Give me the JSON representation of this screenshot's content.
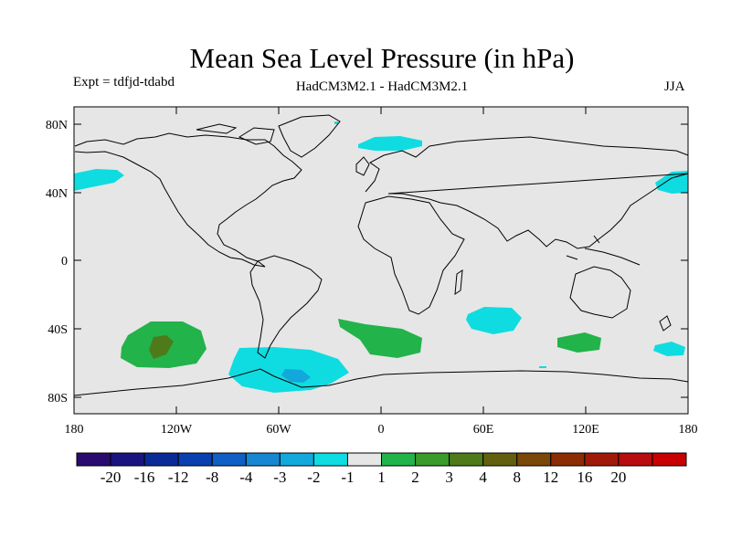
{
  "title": "Mean Sea Level Pressure (in hPa)",
  "experiment_label": "Expt = tdfjd-tdabd",
  "subtitle": "HadCM3M2.1 - HadCM3M2.1",
  "season": "JJA",
  "lat_ticks": [
    "80N",
    "40N",
    "0",
    "40S",
    "80S"
  ],
  "lon_ticks": [
    "180",
    "120W",
    "60W",
    "0",
    "60E",
    "120E",
    "180"
  ],
  "colorbar": {
    "colors": [
      "#2a0a6e",
      "#1a1480",
      "#0a2a98",
      "#0a3fb0",
      "#0f5fc4",
      "#1886d2",
      "#12a8dc",
      "#0fdce0",
      "#e6e6e6",
      "#22b34a",
      "#3a9a2a",
      "#4e7a1a",
      "#62600e",
      "#7a4808",
      "#8c2c04",
      "#a01a0a",
      "#b80c10",
      "#c80000"
    ],
    "labels": [
      "-20",
      "-16",
      "-12",
      "-8",
      "-4",
      "-3",
      "-2",
      "-1",
      "1",
      "2",
      "3",
      "4",
      "8",
      "12",
      "16",
      "20"
    ]
  },
  "colors": {
    "ocean_land": "#e6e6e6",
    "neg_light": "#0fdce0",
    "neg_mid": "#12a8dc",
    "pos_light": "#22b34a",
    "pos_mid": "#4e7a1a"
  }
}
